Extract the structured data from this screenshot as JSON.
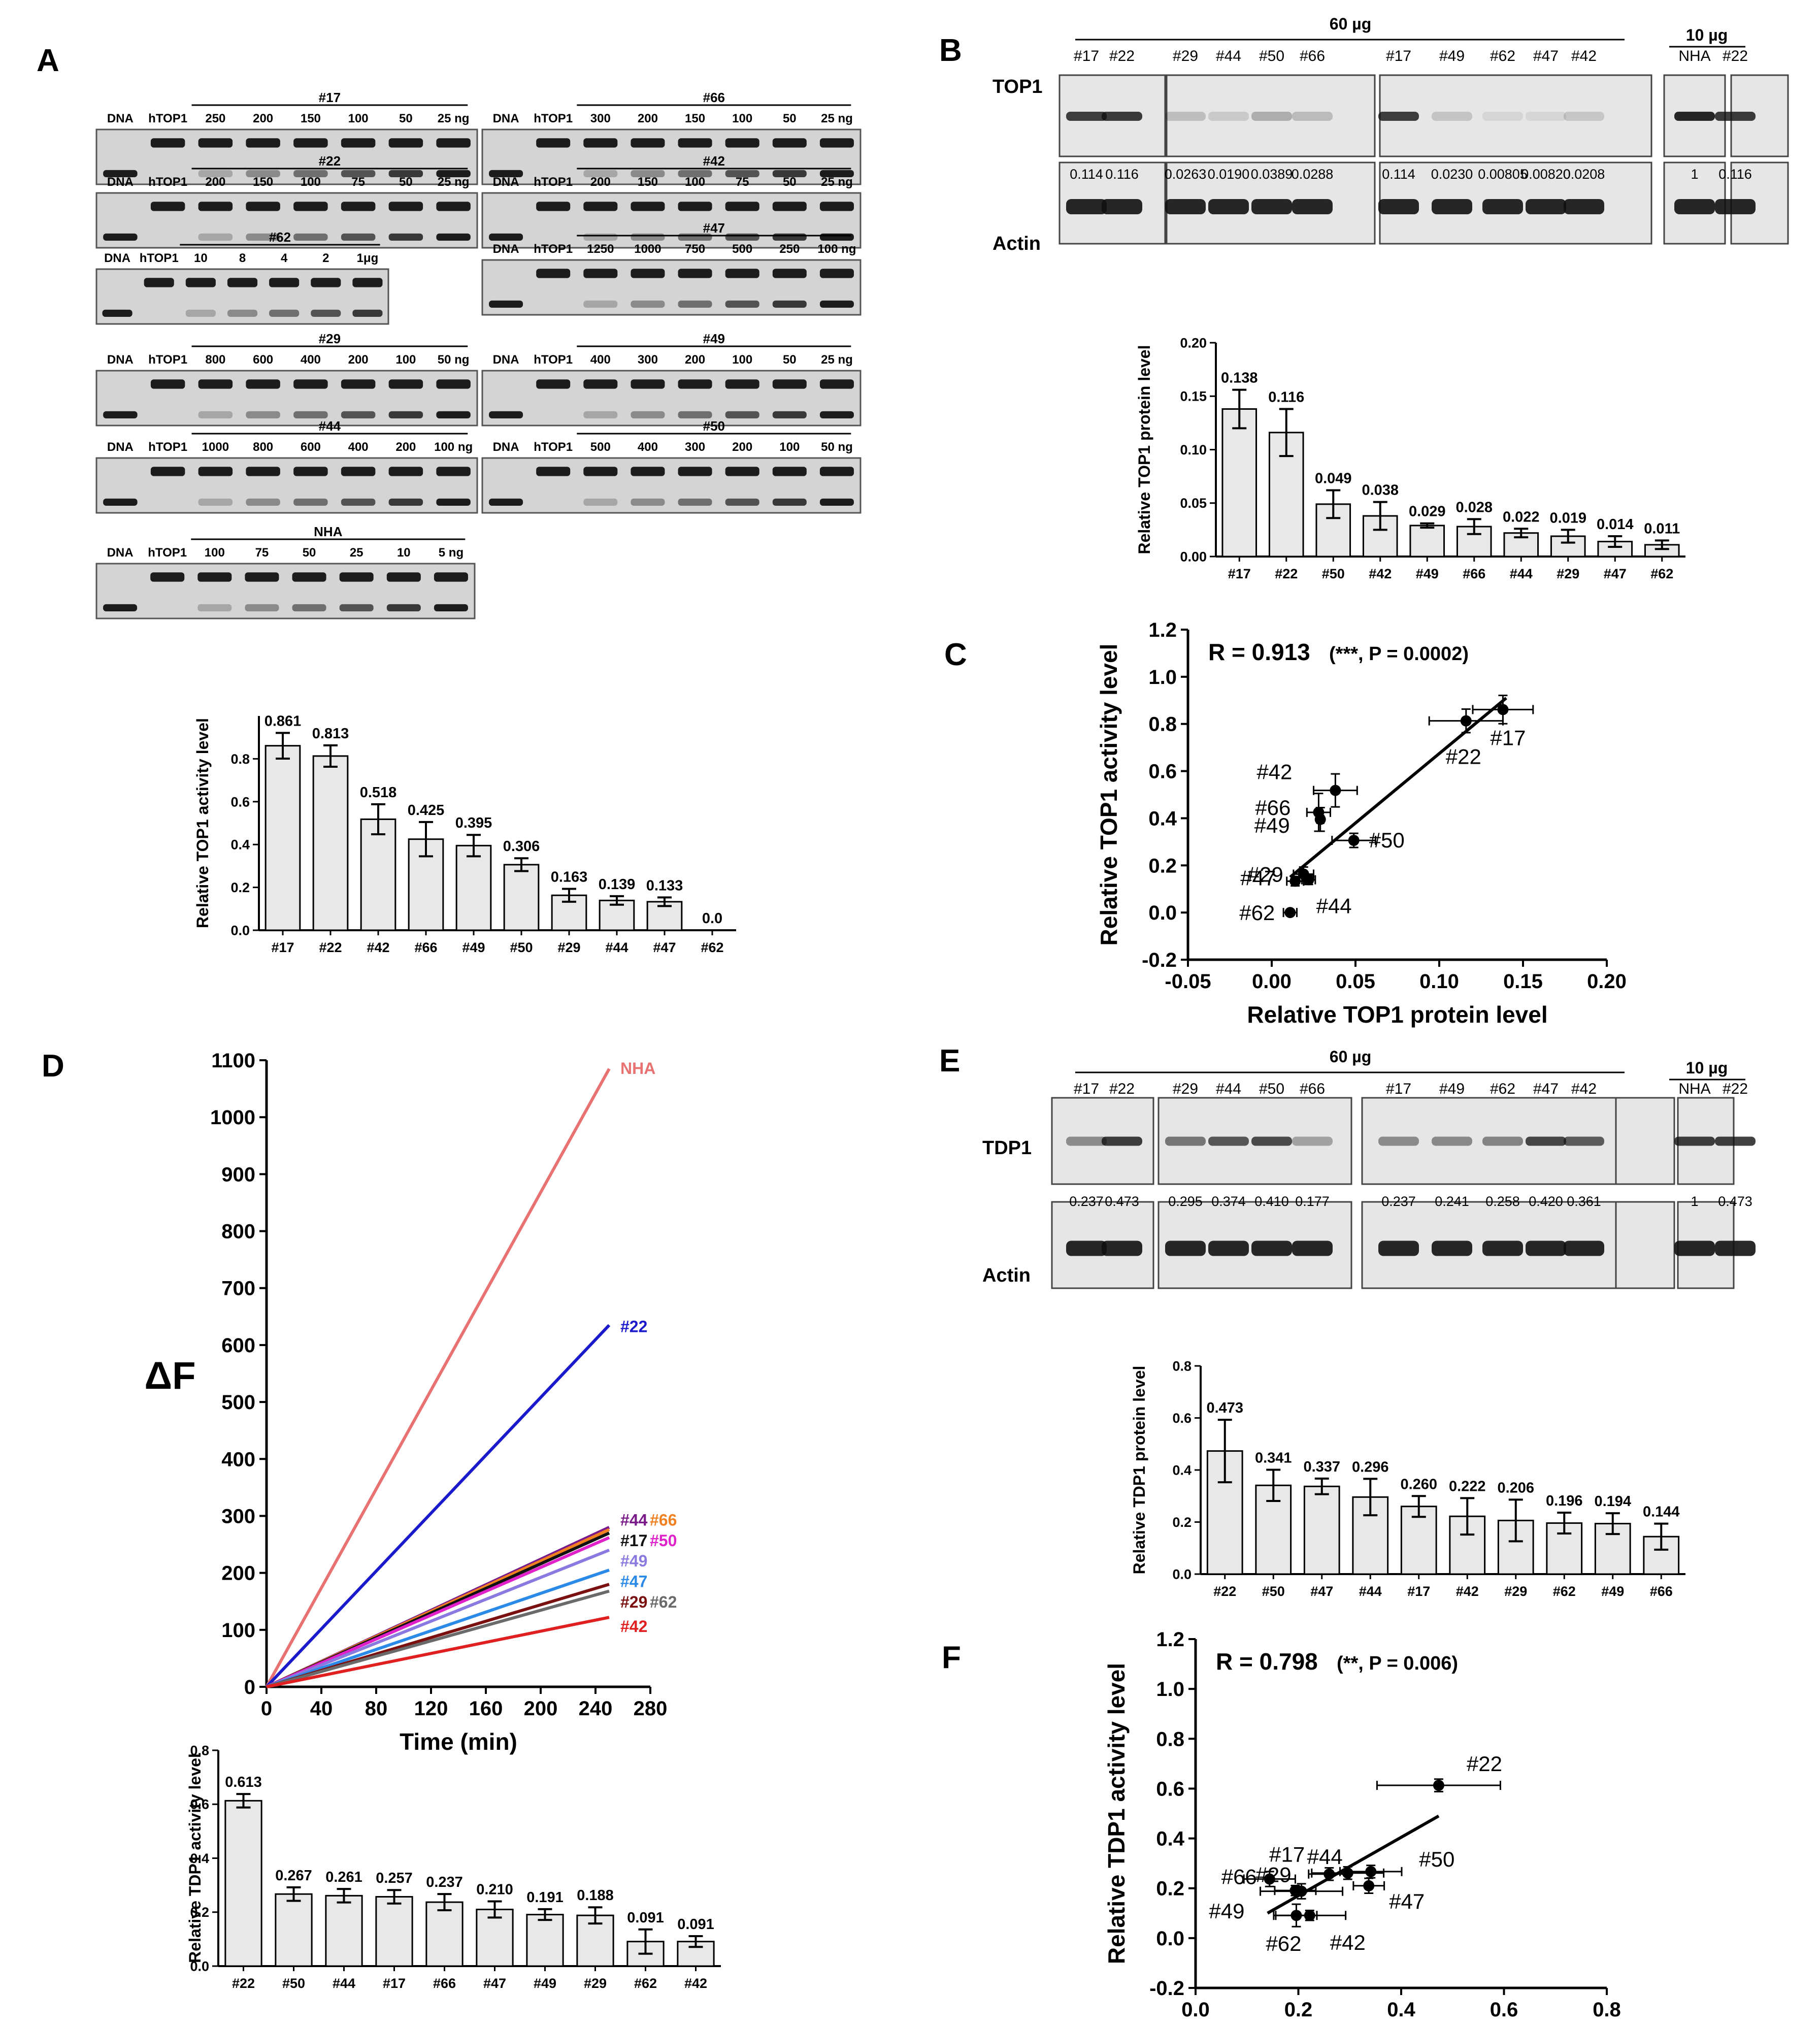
{
  "panel_letters": [
    "A",
    "B",
    "C",
    "D",
    "E",
    "F"
  ],
  "panel_a": {
    "gels": [
      {
        "sample": "#17",
        "lanes": [
          "250",
          "200",
          "150",
          "100",
          "50",
          "25 ng"
        ]
      },
      {
        "sample": "#66",
        "lanes": [
          "300",
          "200",
          "150",
          "100",
          "50",
          "25 ng"
        ]
      },
      {
        "sample": "#22",
        "lanes": [
          "200",
          "150",
          "100",
          "75",
          "50",
          "25 ng"
        ]
      },
      {
        "sample": "#42",
        "lanes": [
          "200",
          "150",
          "100",
          "75",
          "50",
          "25 ng"
        ]
      },
      {
        "sample": "#62",
        "lanes": [
          "10",
          "8",
          "4",
          "2",
          "1μg"
        ]
      },
      {
        "sample": "#47",
        "lanes": [
          "1250",
          "1000",
          "750",
          "500",
          "250",
          "100 ng"
        ]
      },
      {
        "sample": "#29",
        "lanes": [
          "800",
          "600",
          "400",
          "200",
          "100",
          "50 ng"
        ]
      },
      {
        "sample": "#49",
        "lanes": [
          "400",
          "300",
          "200",
          "100",
          "50",
          "25 ng"
        ]
      },
      {
        "sample": "#44",
        "lanes": [
          "1000",
          "800",
          "600",
          "400",
          "200",
          "100 ng"
        ]
      },
      {
        "sample": "#50",
        "lanes": [
          "500",
          "400",
          "300",
          "200",
          "100",
          "50 ng"
        ]
      },
      {
        "sample": "NHA",
        "lanes": [
          "100",
          "75",
          "50",
          "25",
          "10",
          "5 ng"
        ]
      }
    ],
    "dna_label": "DNA",
    "htop1_label": "hTOP1"
  },
  "panel_b": {
    "header_60": "60 µg",
    "header_10": "10 µg",
    "lanes_60": [
      "#17",
      "#22",
      "#29",
      "#44",
      "#50",
      "#66",
      "#17",
      "#49",
      "#62",
      "#47",
      "#42"
    ],
    "lanes_10": [
      "NHA",
      "#22"
    ],
    "row1_label": "TOP1",
    "row2_label": "Actin",
    "quant": [
      "0.114",
      "0.116",
      "0.0263",
      "0.0190",
      "0.0389",
      "0.0288",
      "0.114",
      "0.0230",
      "0.00805",
      "0.00820",
      "0.0208",
      "1",
      "0.116"
    ]
  },
  "panel_e": {
    "header_60": "60 µg",
    "header_10": "10 µg",
    "lanes_60": [
      "#17",
      "#22",
      "#29",
      "#44",
      "#50",
      "#66",
      "#17",
      "#49",
      "#62",
      "#47",
      "#42"
    ],
    "lanes_10": [
      "NHA",
      "#22"
    ],
    "row1_label": "TDP1",
    "row2_label": "Actin",
    "quant": [
      "0.237",
      "0.473",
      "0.295",
      "0.374",
      "0.410",
      "0.177",
      "0.237",
      "0.241",
      "0.258",
      "0.420",
      "0.361",
      "1",
      "0.473"
    ]
  },
  "chart_data": [
    {
      "id": "a_bar",
      "type": "bar",
      "ylabel": "Relative TOP1 activity level",
      "categories": [
        "#17",
        "#22",
        "#42",
        "#66",
        "#49",
        "#50",
        "#29",
        "#44",
        "#47",
        "#62"
      ],
      "values": [
        0.861,
        0.813,
        0.518,
        0.425,
        0.395,
        0.306,
        0.163,
        0.139,
        0.133,
        0.0
      ],
      "labels": [
        "0.861",
        "0.813",
        "0.518",
        "0.425",
        "0.395",
        "0.306",
        "0.163",
        "0.139",
        "0.133",
        "0.0"
      ],
      "errors": [
        0.06,
        0.05,
        0.07,
        0.08,
        0.05,
        0.03,
        0.03,
        0.02,
        0.02,
        0
      ],
      "ylim": [
        0,
        1.0
      ],
      "yticks": [
        "0.0",
        "0.2",
        "0.4",
        "0.6",
        "0.8"
      ]
    },
    {
      "id": "b_bar",
      "type": "bar",
      "ylabel": "Relative TOP1 protein level",
      "categories": [
        "#17",
        "#22",
        "#50",
        "#42",
        "#49",
        "#66",
        "#44",
        "#29",
        "#47",
        "#62"
      ],
      "values": [
        0.138,
        0.116,
        0.049,
        0.038,
        0.029,
        0.028,
        0.022,
        0.019,
        0.014,
        0.011
      ],
      "labels": [
        "0.138",
        "0.116",
        "0.049",
        "0.038",
        "0.029",
        "0.028",
        "0.022",
        "0.019",
        "0.014",
        "0.011"
      ],
      "errors": [
        0.018,
        0.022,
        0.013,
        0.013,
        0.002,
        0.007,
        0.004,
        0.006,
        0.005,
        0.004
      ],
      "ylim": [
        0,
        0.2
      ],
      "yticks": [
        "0.00",
        "0.05",
        "0.10",
        "0.15",
        "0.20"
      ]
    },
    {
      "id": "c_scatter",
      "type": "scatter",
      "xlabel": "Relative TOP1 protein level",
      "ylabel": "Relative TOP1 activity level",
      "title_r": "R = 0.913",
      "title_p": "(***, P = 0.0002)",
      "xlim": [
        -0.05,
        0.2
      ],
      "ylim": [
        -0.2,
        1.2
      ],
      "xticks": [
        "-0.05",
        "0.00",
        "0.05",
        "0.10",
        "0.15",
        "0.20"
      ],
      "yticks": [
        "-0.2",
        "0.0",
        "0.2",
        "0.4",
        "0.6",
        "0.8",
        "1.0",
        "1.2"
      ],
      "points": [
        {
          "name": "#17",
          "x": 0.138,
          "y": 0.861,
          "xerr": 0.018,
          "yerr": 0.06
        },
        {
          "name": "#22",
          "x": 0.116,
          "y": 0.813,
          "xerr": 0.022,
          "yerr": 0.05
        },
        {
          "name": "#42",
          "x": 0.038,
          "y": 0.518,
          "xerr": 0.013,
          "yerr": 0.07
        },
        {
          "name": "#66",
          "x": 0.028,
          "y": 0.425,
          "xerr": 0.007,
          "yerr": 0.08
        },
        {
          "name": "#49",
          "x": 0.029,
          "y": 0.395,
          "xerr": 0.002,
          "yerr": 0.05
        },
        {
          "name": "#50",
          "x": 0.049,
          "y": 0.306,
          "xerr": 0.013,
          "yerr": 0.03
        },
        {
          "name": "#29",
          "x": 0.019,
          "y": 0.163,
          "xerr": 0.006,
          "yerr": 0.03
        },
        {
          "name": "#44",
          "x": 0.022,
          "y": 0.139,
          "xerr": 0.004,
          "yerr": 0.02
        },
        {
          "name": "#47",
          "x": 0.014,
          "y": 0.133,
          "xerr": 0.005,
          "yerr": 0.02
        },
        {
          "name": "#62",
          "x": 0.011,
          "y": 0.0,
          "xerr": 0.004,
          "yerr": 0.0
        }
      ],
      "fit": [
        [
          0.011,
          0.15
        ],
        [
          0.14,
          0.91
        ]
      ]
    },
    {
      "id": "d_line",
      "type": "line",
      "ylabel": "ΔF",
      "xlabel": "Time (min)",
      "xlim": [
        0,
        280
      ],
      "ylim": [
        0,
        1100
      ],
      "xticks": [
        "0",
        "40",
        "80",
        "120",
        "160",
        "200",
        "240",
        "280"
      ],
      "yticks": [
        "0",
        "100",
        "200",
        "300",
        "400",
        "500",
        "600",
        "700",
        "800",
        "900",
        "1000",
        "1100"
      ],
      "series": [
        {
          "name": "NHA",
          "color": "#e87272",
          "x": [
            0,
            250
          ],
          "y": [
            0,
            1085
          ]
        },
        {
          "name": "#22",
          "color": "#1a1acc",
          "x": [
            0,
            250
          ],
          "y": [
            0,
            635
          ]
        },
        {
          "name": "#44",
          "color": "#7a1a8a",
          "x": [
            0,
            250
          ],
          "y": [
            0,
            280
          ]
        },
        {
          "name": "#66",
          "color": "#f08020",
          "x": [
            0,
            250
          ],
          "y": [
            0,
            276
          ]
        },
        {
          "name": "#17",
          "color": "#111111",
          "x": [
            0,
            250
          ],
          "y": [
            0,
            270
          ]
        },
        {
          "name": "#50",
          "color": "#e020c8",
          "x": [
            0,
            250
          ],
          "y": [
            0,
            262
          ]
        },
        {
          "name": "#49",
          "color": "#8a7ae0",
          "x": [
            0,
            250
          ],
          "y": [
            0,
            240
          ]
        },
        {
          "name": "#47",
          "color": "#2b8ae8",
          "x": [
            0,
            250
          ],
          "y": [
            0,
            205
          ]
        },
        {
          "name": "#29",
          "color": "#7a1010",
          "x": [
            0,
            250
          ],
          "y": [
            0,
            180
          ]
        },
        {
          "name": "#62",
          "color": "#6a6a6a",
          "x": [
            0,
            250
          ],
          "y": [
            0,
            168
          ]
        },
        {
          "name": "#42",
          "color": "#e02020",
          "x": [
            0,
            250
          ],
          "y": [
            0,
            122
          ]
        }
      ]
    },
    {
      "id": "d_bar",
      "type": "bar",
      "ylabel": "Relative TDP1 activity level",
      "categories": [
        "#22",
        "#50",
        "#44",
        "#17",
        "#66",
        "#47",
        "#49",
        "#29",
        "#62",
        "#42"
      ],
      "values": [
        0.613,
        0.267,
        0.261,
        0.257,
        0.237,
        0.21,
        0.191,
        0.188,
        0.091,
        0.091
      ],
      "labels": [
        "0.613",
        "0.267",
        "0.261",
        "0.257",
        "0.237",
        "0.210",
        "0.191",
        "0.188",
        "0.091",
        "0.091"
      ],
      "errors": [
        0.025,
        0.025,
        0.025,
        0.025,
        0.03,
        0.03,
        0.02,
        0.03,
        0.045,
        0.02
      ],
      "ylim": [
        0,
        0.8
      ],
      "yticks": [
        "0.0",
        "0.2",
        "0.4",
        "0.6",
        "0.8"
      ]
    },
    {
      "id": "e_bar",
      "type": "bar",
      "ylabel": "Relative TDP1 protein level",
      "categories": [
        "#22",
        "#50",
        "#47",
        "#44",
        "#17",
        "#42",
        "#29",
        "#62",
        "#49",
        "#66"
      ],
      "values": [
        0.473,
        0.341,
        0.337,
        0.296,
        0.26,
        0.222,
        0.206,
        0.196,
        0.194,
        0.144
      ],
      "labels": [
        "0.473",
        "0.341",
        "0.337",
        "0.296",
        "0.260",
        "0.222",
        "0.206",
        "0.196",
        "0.194",
        "0.144"
      ],
      "errors": [
        0.12,
        0.06,
        0.03,
        0.07,
        0.04,
        0.07,
        0.08,
        0.04,
        0.04,
        0.05
      ],
      "ylim": [
        0,
        0.8
      ],
      "yticks": [
        "0.0",
        "0.2",
        "0.4",
        "0.6",
        "0.8"
      ]
    },
    {
      "id": "f_scatter",
      "type": "scatter",
      "xlabel": "Relative TDP1 protein level",
      "ylabel": "Relative TDP1 activity level",
      "title_r": "R = 0.798",
      "title_p": "(**, P = 0.006)",
      "xlim": [
        0,
        0.8
      ],
      "ylim": [
        -0.2,
        1.2
      ],
      "xticks": [
        "0.0",
        "0.2",
        "0.4",
        "0.6",
        "0.8"
      ],
      "yticks": [
        "-0.2",
        "0.0",
        "0.2",
        "0.4",
        "0.6",
        "0.8",
        "1.0",
        "1.2"
      ],
      "points": [
        {
          "name": "#22",
          "x": 0.473,
          "y": 0.613,
          "xerr": 0.12,
          "yerr": 0.025
        },
        {
          "name": "#50",
          "x": 0.341,
          "y": 0.267,
          "xerr": 0.06,
          "yerr": 0.025
        },
        {
          "name": "#47",
          "x": 0.337,
          "y": 0.21,
          "xerr": 0.03,
          "yerr": 0.03
        },
        {
          "name": "#44",
          "x": 0.296,
          "y": 0.261,
          "xerr": 0.07,
          "yerr": 0.025
        },
        {
          "name": "#17",
          "x": 0.26,
          "y": 0.257,
          "xerr": 0.04,
          "yerr": 0.025
        },
        {
          "name": "#42",
          "x": 0.222,
          "y": 0.091,
          "xerr": 0.07,
          "yerr": 0.02
        },
        {
          "name": "#29",
          "x": 0.206,
          "y": 0.188,
          "xerr": 0.08,
          "yerr": 0.03
        },
        {
          "name": "#62",
          "x": 0.196,
          "y": 0.091,
          "xerr": 0.04,
          "yerr": 0.045
        },
        {
          "name": "#49",
          "x": 0.194,
          "y": 0.191,
          "xerr": 0.04,
          "yerr": 0.02
        },
        {
          "name": "#66",
          "x": 0.144,
          "y": 0.237,
          "xerr": 0.05,
          "yerr": 0.03
        }
      ],
      "fit": [
        [
          0.14,
          0.1
        ],
        [
          0.473,
          0.49
        ]
      ]
    }
  ]
}
